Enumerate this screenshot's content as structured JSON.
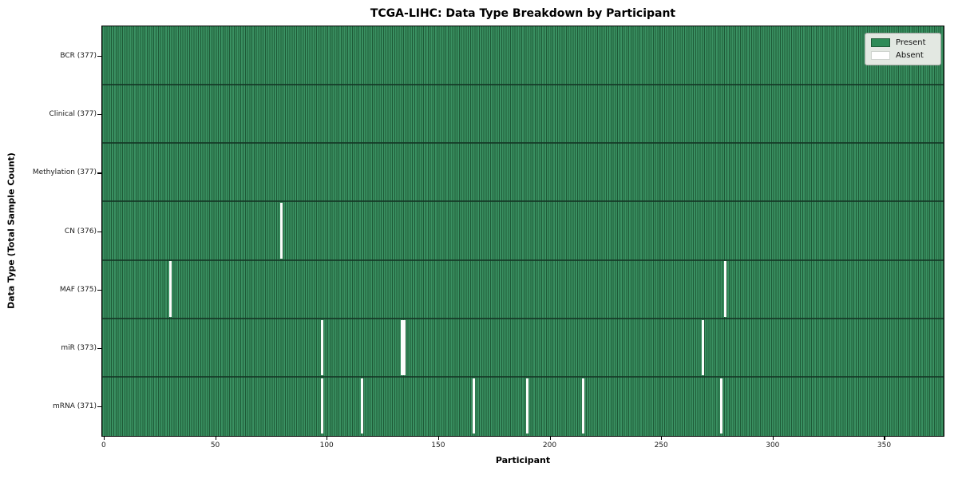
{
  "title": "TCGA-LIHC: Data Type Breakdown by Participant",
  "axes": {
    "x_label": "Participant",
    "y_label": "Data Type (Total Sample Count)",
    "x_ticks": [
      "0",
      "50",
      "100",
      "150",
      "200",
      "250",
      "300",
      "350"
    ]
  },
  "legend": {
    "present_label": "Present",
    "absent_label": "Absent",
    "present_color": "#2e8b57",
    "absent_color": "#ffffff"
  },
  "chart_data": {
    "type": "heatmap",
    "title": "TCGA-LIHC: Data Type Breakdown by Participant",
    "xlabel": "Participant",
    "ylabel": "Data Type (Total Sample Count)",
    "legend_position": "upper right",
    "legend_entries": [
      "Present",
      "Absent"
    ],
    "present_color": "#2e8b57",
    "absent_color": "#ffffff",
    "total_participants": 377,
    "x_range": [
      0,
      377
    ],
    "x_tick_values": [
      0,
      50,
      100,
      150,
      200,
      250,
      300,
      350
    ],
    "rows": [
      {
        "label": "BCR (377)",
        "data_type": "BCR",
        "total_samples": 377,
        "absent_participants": []
      },
      {
        "label": "Clinical (377)",
        "data_type": "Clinical",
        "total_samples": 377,
        "absent_participants": []
      },
      {
        "label": "Methylation (377)",
        "data_type": "Methylation",
        "total_samples": 377,
        "absent_participants": []
      },
      {
        "label": "CN (376)",
        "data_type": "CN",
        "total_samples": 376,
        "absent_participants": [
          80
        ]
      },
      {
        "label": "MAF (375)",
        "data_type": "MAF",
        "total_samples": 375,
        "absent_participants": [
          30,
          279
        ]
      },
      {
        "label": "miR (373)",
        "data_type": "miR",
        "total_samples": 373,
        "absent_participants": [
          98,
          134,
          135,
          269
        ]
      },
      {
        "label": "mRNA (371)",
        "data_type": "mRNA",
        "total_samples": 371,
        "absent_participants": [
          98,
          116,
          166,
          190,
          215,
          277
        ]
      }
    ]
  }
}
